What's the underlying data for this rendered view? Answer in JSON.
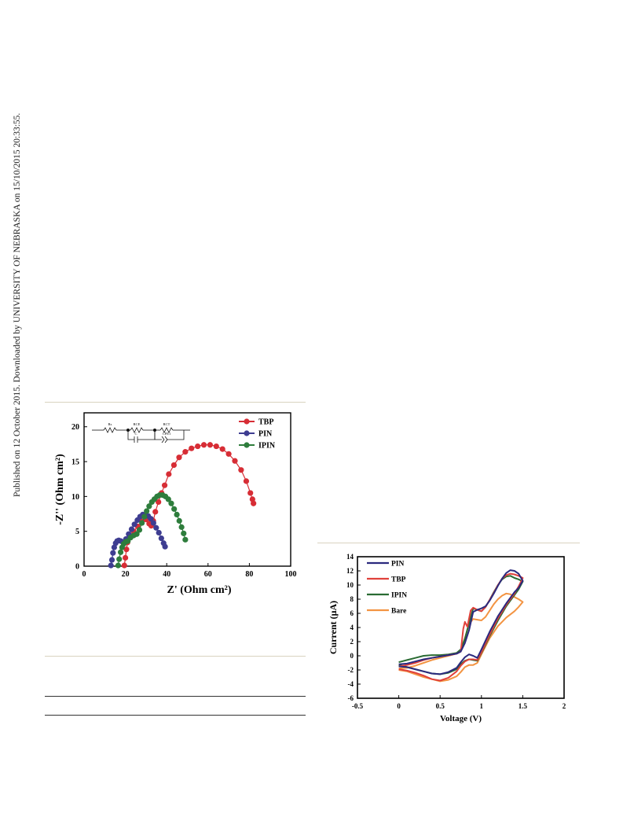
{
  "sidebar_text": "Published on 12 October 2015. Downloaded by UNIVERSITY OF NEBRASKA on 15/10/2015 20:33:55.",
  "chart_data": [
    {
      "type": "scatter",
      "title": "",
      "xlabel": "Z' (Ohm cm²)",
      "ylabel": "-Z'' (Ohm cm²)",
      "xlim": [
        0,
        100
      ],
      "ylim": [
        0,
        22
      ],
      "xticks": [
        0,
        20,
        40,
        60,
        80,
        100
      ],
      "yticks": [
        0,
        5,
        10,
        15,
        20
      ],
      "grid": false,
      "legend_position": "top-right",
      "inset_labels": [
        "Rs",
        "RCE",
        "C",
        "RCT",
        "CPE1"
      ],
      "series": [
        {
          "name": "TBP",
          "color": "#d72d35",
          "x": [
            19.5,
            20,
            20.5,
            21,
            22,
            24,
            26,
            28,
            30,
            31.5,
            32.5,
            33.5,
            34.5,
            36,
            37.5,
            39,
            41,
            43.5,
            46,
            49,
            52,
            55,
            58,
            61,
            64,
            67,
            70,
            73,
            76,
            78.5,
            80.5,
            81.5,
            82
          ],
          "y": [
            0.1,
            1.2,
            2.4,
            3.4,
            4.2,
            5,
            5.7,
            6.4,
            6.7,
            6.1,
            5.8,
            6.5,
            7.8,
            9.2,
            10.5,
            11.6,
            13.2,
            14.5,
            15.6,
            16.4,
            16.9,
            17.2,
            17.4,
            17.4,
            17.2,
            16.8,
            16.1,
            15.1,
            13.8,
            12.2,
            10.5,
            9.6,
            9
          ]
        },
        {
          "name": "PIN",
          "color": "#3e3d91",
          "x": [
            13,
            13.5,
            14,
            14.6,
            15.3,
            16,
            16.8,
            17.8,
            19,
            20.3,
            21.6,
            23,
            24.4,
            25.8,
            27.1,
            28.4,
            29.7,
            31,
            32.3,
            33.6,
            34.9,
            36.2,
            37.4,
            38.5,
            39.2
          ],
          "y": [
            0.1,
            0.9,
            1.9,
            2.7,
            3.3,
            3.6,
            3.7,
            3.6,
            3.4,
            3.9,
            4.6,
            5.3,
            6,
            6.6,
            7.1,
            7.4,
            7.4,
            7.2,
            6.8,
            6.2,
            5.5,
            4.8,
            4,
            3.3,
            2.8
          ]
        },
        {
          "name": "IPIN",
          "color": "#2e7d3c",
          "x": [
            16.5,
            17,
            17.7,
            18.4,
            19.2,
            20.2,
            21.2,
            22.5,
            24,
            25.5,
            26.8,
            28,
            29.2,
            30.3,
            31.5,
            32.8,
            34,
            35.3,
            36.6,
            38,
            39.4,
            40.8,
            42.2,
            43.6,
            44.9,
            46.1,
            47.2,
            48.2,
            49
          ],
          "y": [
            0.1,
            1,
            2,
            2.7,
            3.2,
            3.5,
            3.6,
            4.1,
            4.4,
            4.6,
            5.2,
            6.2,
            7.1,
            7.9,
            8.6,
            9.2,
            9.6,
            10,
            10.2,
            10.2,
            10,
            9.6,
            9,
            8.2,
            7.4,
            6.5,
            5.6,
            4.7,
            3.8
          ]
        }
      ]
    },
    {
      "type": "line",
      "title": "",
      "xlabel": "Voltage (V)",
      "ylabel": "Current  (μA)",
      "xlim": [
        -0.5,
        2
      ],
      "ylim": [
        -6,
        14
      ],
      "xticks": [
        -0.5,
        0,
        0.5,
        1,
        1.5,
        2
      ],
      "yticks": [
        -6,
        -4,
        -2,
        0,
        2,
        4,
        6,
        8,
        10,
        12,
        14
      ],
      "grid": false,
      "legend_position": "top-left",
      "series": [
        {
          "name": "PIN",
          "color": "#2b2a7e",
          "points": [
            [
              0,
              -1.2
            ],
            [
              0.1,
              -1.1
            ],
            [
              0.2,
              -0.8
            ],
            [
              0.3,
              -0.5
            ],
            [
              0.4,
              -0.3
            ],
            [
              0.5,
              -0.1
            ],
            [
              0.6,
              0.1
            ],
            [
              0.7,
              0.3
            ],
            [
              0.75,
              0.6
            ],
            [
              0.8,
              1.8
            ],
            [
              0.85,
              3.6
            ],
            [
              0.9,
              6.2
            ],
            [
              0.95,
              6.5
            ],
            [
              1.0,
              6.7
            ],
            [
              1.05,
              7
            ],
            [
              1.1,
              7.8
            ],
            [
              1.15,
              8.8
            ],
            [
              1.2,
              9.9
            ],
            [
              1.25,
              10.9
            ],
            [
              1.3,
              11.7
            ],
            [
              1.35,
              12.1
            ],
            [
              1.4,
              12
            ],
            [
              1.45,
              11.6
            ],
            [
              1.5,
              10.6
            ],
            [
              1.45,
              9.6
            ],
            [
              1.4,
              9
            ],
            [
              1.3,
              7.4
            ],
            [
              1.2,
              5.6
            ],
            [
              1.1,
              3.4
            ],
            [
              1.0,
              0.9
            ],
            [
              0.95,
              -0.3
            ],
            [
              0.9,
              0
            ],
            [
              0.85,
              0.2
            ],
            [
              0.8,
              -0.2
            ],
            [
              0.75,
              -0.9
            ],
            [
              0.7,
              -1.7
            ],
            [
              0.6,
              -2.3
            ],
            [
              0.5,
              -2.6
            ],
            [
              0.4,
              -2.5
            ],
            [
              0.3,
              -2.2
            ],
            [
              0.2,
              -1.9
            ],
            [
              0.1,
              -1.6
            ],
            [
              0,
              -1.5
            ]
          ]
        },
        {
          "name": "TBP",
          "color": "#e0413b",
          "points": [
            [
              0,
              -1.5
            ],
            [
              0.1,
              -1.3
            ],
            [
              0.2,
              -1
            ],
            [
              0.3,
              -0.6
            ],
            [
              0.4,
              -0.3
            ],
            [
              0.5,
              -0.1
            ],
            [
              0.6,
              0.1
            ],
            [
              0.7,
              0.3
            ],
            [
              0.75,
              0.6
            ],
            [
              0.78,
              3.8
            ],
            [
              0.8,
              4.8
            ],
            [
              0.83,
              4.1
            ],
            [
              0.87,
              6.4
            ],
            [
              0.9,
              6.8
            ],
            [
              0.95,
              6.5
            ],
            [
              1.0,
              6.3
            ],
            [
              1.05,
              6.9
            ],
            [
              1.1,
              7.9
            ],
            [
              1.15,
              8.9
            ],
            [
              1.2,
              10
            ],
            [
              1.25,
              10.9
            ],
            [
              1.3,
              11.4
            ],
            [
              1.35,
              11.6
            ],
            [
              1.4,
              11.5
            ],
            [
              1.45,
              11.3
            ],
            [
              1.5,
              11
            ],
            [
              1.45,
              9.8
            ],
            [
              1.4,
              8.8
            ],
            [
              1.3,
              7.2
            ],
            [
              1.2,
              5.3
            ],
            [
              1.1,
              3
            ],
            [
              1.0,
              0.5
            ],
            [
              0.95,
              -0.6
            ],
            [
              0.9,
              -0.5
            ],
            [
              0.85,
              -0.5
            ],
            [
              0.8,
              -0.8
            ],
            [
              0.75,
              -1.4
            ],
            [
              0.7,
              -2.2
            ],
            [
              0.6,
              -3.1
            ],
            [
              0.5,
              -3.5
            ],
            [
              0.4,
              -3.3
            ],
            [
              0.3,
              -2.8
            ],
            [
              0.2,
              -2.4
            ],
            [
              0.1,
              -2.1
            ],
            [
              0,
              -1.9
            ]
          ]
        },
        {
          "name": "IPIN",
          "color": "#2a6b33",
          "points": [
            [
              0,
              -0.9
            ],
            [
              0.1,
              -0.6
            ],
            [
              0.2,
              -0.3
            ],
            [
              0.3,
              0
            ],
            [
              0.4,
              0.1
            ],
            [
              0.5,
              0.1
            ],
            [
              0.6,
              0.2
            ],
            [
              0.7,
              0.4
            ],
            [
              0.75,
              0.9
            ],
            [
              0.8,
              2.4
            ],
            [
              0.85,
              4.6
            ],
            [
              0.9,
              6.7
            ],
            [
              0.95,
              6.5
            ],
            [
              1.0,
              6.3
            ],
            [
              1.05,
              6.9
            ],
            [
              1.1,
              7.9
            ],
            [
              1.15,
              9
            ],
            [
              1.2,
              10
            ],
            [
              1.25,
              10.8
            ],
            [
              1.3,
              11.2
            ],
            [
              1.35,
              11.3
            ],
            [
              1.4,
              11
            ],
            [
              1.45,
              10.8
            ],
            [
              1.5,
              10.5
            ],
            [
              1.45,
              9.4
            ],
            [
              1.4,
              8.6
            ],
            [
              1.3,
              7
            ],
            [
              1.2,
              5
            ],
            [
              1.1,
              2.8
            ],
            [
              1.0,
              0.4
            ],
            [
              0.95,
              -0.7
            ],
            [
              0.9,
              -0.6
            ],
            [
              0.85,
              -0.5
            ],
            [
              0.8,
              -0.7
            ],
            [
              0.75,
              -1.2
            ],
            [
              0.7,
              -1.9
            ],
            [
              0.6,
              -2.4
            ],
            [
              0.5,
              -2.6
            ],
            [
              0.4,
              -2.5
            ],
            [
              0.3,
              -2.2
            ],
            [
              0.2,
              -1.9
            ],
            [
              0.1,
              -1.6
            ],
            [
              0,
              -1.3
            ]
          ]
        },
        {
          "name": "Bare",
          "color": "#f39442",
          "points": [
            [
              0,
              -1.8
            ],
            [
              0.1,
              -1.7
            ],
            [
              0.2,
              -1.4
            ],
            [
              0.3,
              -1
            ],
            [
              0.4,
              -0.6
            ],
            [
              0.5,
              -0.3
            ],
            [
              0.6,
              0
            ],
            [
              0.7,
              0.3
            ],
            [
              0.75,
              0.8
            ],
            [
              0.8,
              2.5
            ],
            [
              0.85,
              4.5
            ],
            [
              0.9,
              5.2
            ],
            [
              0.95,
              5.1
            ],
            [
              1.0,
              5
            ],
            [
              1.05,
              5.5
            ],
            [
              1.1,
              6.4
            ],
            [
              1.15,
              7.3
            ],
            [
              1.2,
              8
            ],
            [
              1.25,
              8.5
            ],
            [
              1.3,
              8.8
            ],
            [
              1.35,
              8.7
            ],
            [
              1.4,
              8.3
            ],
            [
              1.45,
              8
            ],
            [
              1.5,
              7.6
            ],
            [
              1.45,
              6.9
            ],
            [
              1.4,
              6.3
            ],
            [
              1.3,
              5.4
            ],
            [
              1.2,
              4.2
            ],
            [
              1.1,
              2.5
            ],
            [
              1.0,
              0.2
            ],
            [
              0.95,
              -1
            ],
            [
              0.9,
              -1.3
            ],
            [
              0.85,
              -1.3
            ],
            [
              0.8,
              -1.6
            ],
            [
              0.75,
              -2.3
            ],
            [
              0.7,
              -2.9
            ],
            [
              0.6,
              -3.4
            ],
            [
              0.5,
              -3.6
            ],
            [
              0.4,
              -3.3
            ],
            [
              0.3,
              -3
            ],
            [
              0.2,
              -2.6
            ],
            [
              0.1,
              -2.2
            ],
            [
              0,
              -2
            ]
          ]
        }
      ]
    }
  ]
}
